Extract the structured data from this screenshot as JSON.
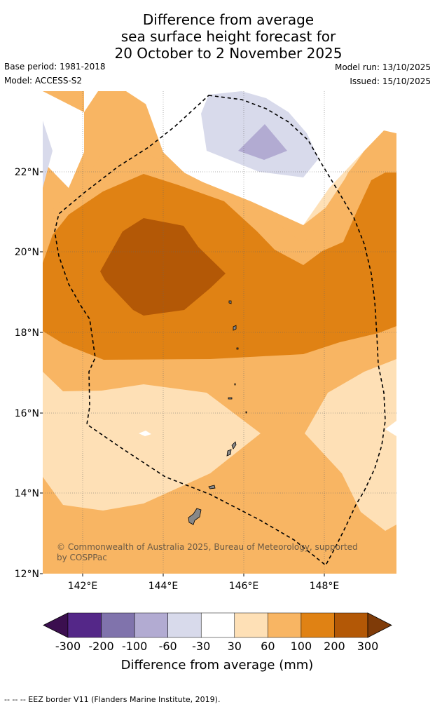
{
  "title": {
    "line1": "Difference from average",
    "line2": "sea surface height forecast for",
    "line3": "20 October to 2 November 2025"
  },
  "meta": {
    "base_period": "Base period: 1981-2018",
    "model": "Model: ACCESS-S2",
    "model_run": "Model run: 13/10/2025",
    "issued": "Issued: 15/10/2025"
  },
  "map": {
    "lat_labels": [
      "22°N",
      "20°N",
      "18°N",
      "16°N",
      "14°N",
      "12°N"
    ],
    "lon_labels": [
      "142°E",
      "144°E",
      "146°E",
      "148°E"
    ],
    "copyright_line1": "© Commonwealth of Australia 2025, Bureau of Meteorology, supported",
    "copyright_line2": "by COSPPac"
  },
  "colorbar": {
    "title": "Difference from average (mm)",
    "tick_labels": [
      "-300",
      "-200",
      "-100",
      "-60",
      "-30",
      "30",
      "60",
      "100",
      "200",
      "300"
    ],
    "colors": [
      "#3b0f4f",
      "#542788",
      "#8073ac",
      "#b2abd2",
      "#d8daeb",
      "#ffffff",
      "#fee0b6",
      "#f8b563",
      "#e08214",
      "#b35806",
      "#7f3b08"
    ]
  },
  "footer": "--  --  -- EEZ border V11 (Flanders Marine Institute, 2019)."
}
